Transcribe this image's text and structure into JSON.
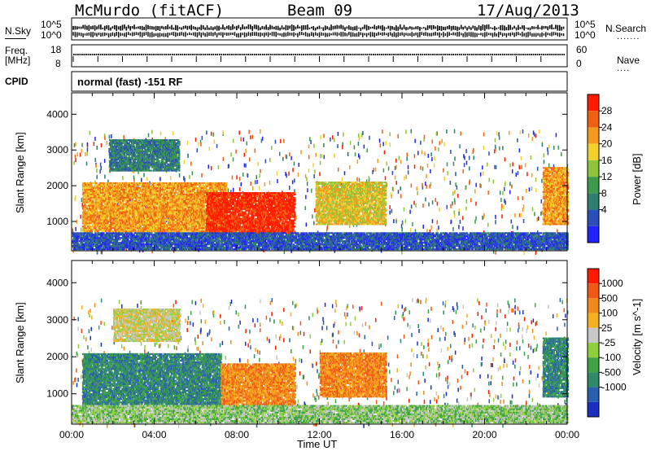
{
  "header": {
    "site": "McMurdo (fitACF)",
    "beam": "Beam 09",
    "date": "17/Aug/2013"
  },
  "info_panel": {
    "nsky_label": "N.Sky",
    "nsearch_label": "N.Search",
    "nsearch_dots": ".......",
    "freq_label_1": "Freq.",
    "freq_label_2": "[MHz]",
    "nave_label": "Nave",
    "nave_dots": "....",
    "cpid_label": "CPID",
    "noise_ticks_left": [
      "10^5",
      "10^0"
    ],
    "noise_ticks_right": [
      "10^5",
      "10^0"
    ],
    "freq_ticks_left": [
      "18",
      "8"
    ],
    "nave_ticks_right": [
      "60",
      "0"
    ],
    "cpid_text": "normal (fast) -151 RF"
  },
  "chart_data": [
    {
      "type": "heatmap",
      "name": "power",
      "ylabel": "Slant Range [km]",
      "xlabel": "",
      "x_range_hours": [
        0,
        24
      ],
      "ylim_km": [
        180,
        4600
      ],
      "y_ticks": [
        1000,
        2000,
        3000,
        4000
      ],
      "colorbar": {
        "label": "Power [dB]",
        "ticks": [
          "28",
          "24",
          "20",
          "16",
          "12",
          "8",
          "4"
        ],
        "colors": [
          "#2222ff",
          "#2a4fb8",
          "#2f7f6e",
          "#3c9a4a",
          "#8cc43a",
          "#f2d12a",
          "#f39a1f",
          "#f06010",
          "#ff1a00"
        ]
      },
      "regions": [
        {
          "x0": 0.5,
          "x1": 7.5,
          "y0": 700,
          "y1": 2100,
          "level": 6
        },
        {
          "x0": 6.5,
          "x1": 10.8,
          "y0": 650,
          "y1": 1800,
          "level": 8
        },
        {
          "x0": 1.8,
          "x1": 5.2,
          "y0": 2400,
          "y1": 3300,
          "level": 2
        },
        {
          "x0": 11.8,
          "x1": 15.2,
          "y0": 900,
          "y1": 2100,
          "level": 5
        },
        {
          "x0": 22.8,
          "x1": 24.0,
          "y0": 900,
          "y1": 2500,
          "level": 6
        },
        {
          "x0": 0.0,
          "x1": 24.0,
          "y0": 200,
          "y1": 700,
          "level": 1
        }
      ]
    },
    {
      "type": "heatmap",
      "name": "velocity",
      "ylabel": "Slant Range [km]",
      "xlabel": "Time UT",
      "x_range_hours": [
        0,
        24
      ],
      "ylim_km": [
        180,
        4600
      ],
      "y_ticks": [
        1000,
        2000,
        3000,
        4000
      ],
      "x_tick_labels": [
        "00:00",
        "04:00",
        "08:00",
        "12:00",
        "16:00",
        "20:00",
        "00:00"
      ],
      "colorbar": {
        "label": "Velocity [m s^-1]",
        "ticks": [
          "1000",
          "500",
          "100",
          "25",
          "-25",
          "-100",
          "-500",
          "-1000"
        ],
        "colors": [
          "#1a2fc0",
          "#2a5fb0",
          "#2f8a6a",
          "#3ea345",
          "#8ed03a",
          "#c8c8c8",
          "#f5b020",
          "#f28a1a",
          "#f05818",
          "#ff1a00"
        ]
      },
      "regions": [
        {
          "x0": 0.5,
          "x1": 7.2,
          "y0": 700,
          "y1": 2100,
          "level": 2
        },
        {
          "x0": 7.2,
          "x1": 10.8,
          "y0": 650,
          "y1": 1800,
          "level": 7
        },
        {
          "x0": 2.0,
          "x1": 5.2,
          "y0": 2400,
          "y1": 3300,
          "level": 5
        },
        {
          "x0": 12.0,
          "x1": 15.2,
          "y0": 900,
          "y1": 2100,
          "level": 7
        },
        {
          "x0": 22.8,
          "x1": 24.0,
          "y0": 900,
          "y1": 2500,
          "level": 2
        },
        {
          "x0": 0.0,
          "x1": 24.0,
          "y0": 200,
          "y1": 700,
          "level": 4
        }
      ]
    }
  ]
}
